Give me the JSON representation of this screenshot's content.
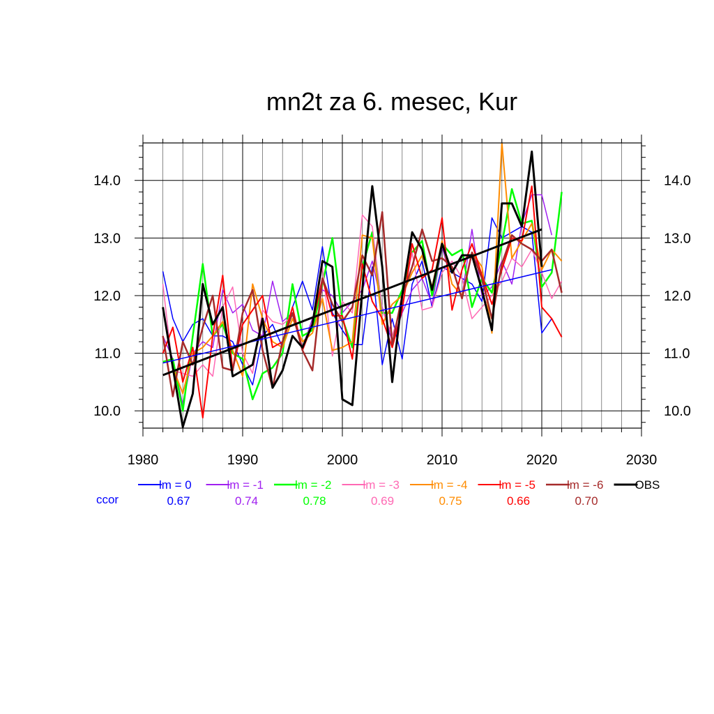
{
  "chart_data": {
    "type": "line",
    "title": "mn2t za 6. mesec, Kur",
    "xlim": [
      1980,
      2030
    ],
    "ylim": [
      9.7,
      14.65
    ],
    "x_ticks": [
      1980,
      1990,
      2000,
      2010,
      2020,
      2030
    ],
    "y_ticks": [
      10.0,
      11.0,
      12.0,
      13.0,
      14.0
    ],
    "grid": true,
    "ccor_label": "ccor",
    "ccor_color": "#0000ff",
    "series": [
      {
        "name": "lm = 0",
        "color": "#0000ff",
        "width": 1.5,
        "ccor": "0.67",
        "x_start": 1982,
        "values": [
          12.42,
          11.6,
          11.2,
          11.5,
          11.6,
          11.3,
          11.3,
          11.2,
          10.8,
          10.45,
          11.3,
          11.5,
          11.1,
          11.8,
          12.25,
          11.75,
          12.85,
          11.7,
          11.4,
          11.15,
          11.15,
          12.5,
          10.8,
          11.6,
          10.9,
          12.2,
          12.6,
          11.8,
          12.5,
          12.4,
          12.3,
          12.2,
          11.9,
          13.35,
          13.0,
          13.1,
          13.2,
          13.1,
          11.35,
          11.6
        ]
      },
      {
        "name": "lm = -1",
        "color": "#a020f0",
        "width": 1.5,
        "ccor": "0.74",
        "x_start": 1982,
        "values": [
          11.3,
          10.9,
          10.1,
          11.0,
          11.2,
          11.1,
          12.1,
          11.7,
          11.85,
          11.4,
          11.3,
          12.25,
          11.55,
          11.7,
          11.1,
          11.6,
          12.1,
          12.0,
          11.7,
          11.9,
          12.1,
          12.6,
          11.8,
          11.2,
          11.7,
          12.1,
          12.3,
          11.85,
          12.85,
          12.2,
          12.0,
          13.15,
          12.0,
          12.15,
          12.6,
          12.2,
          13.25,
          13.75,
          13.75,
          13.05
        ]
      },
      {
        "name": "lm = -2",
        "color": "#00ff00",
        "width": 2.5,
        "ccor": "0.78",
        "x_start": 1982,
        "values": [
          10.85,
          10.9,
          10.0,
          11.3,
          12.55,
          11.3,
          11.5,
          11.0,
          10.9,
          10.2,
          10.65,
          10.75,
          11.0,
          12.2,
          11.3,
          11.4,
          12.2,
          13.0,
          11.6,
          11.1,
          12.5,
          13.1,
          11.7,
          11.7,
          12.1,
          12.75,
          12.95,
          12.0,
          12.9,
          12.7,
          12.8,
          11.8,
          12.3,
          12.05,
          12.9,
          13.85,
          13.25,
          13.3,
          12.15,
          12.4,
          13.8
        ]
      },
      {
        "name": "lm = -3",
        "color": "#ff69b4",
        "width": 1.5,
        "ccor": "0.69",
        "x_start": 1982,
        "values": [
          12.2,
          10.7,
          10.65,
          10.6,
          10.8,
          10.6,
          11.8,
          12.15,
          11.0,
          10.65,
          11.75,
          11.55,
          11.5,
          11.65,
          11.1,
          11.55,
          12.5,
          10.95,
          11.9,
          11.7,
          13.4,
          13.2,
          11.75,
          11.3,
          11.85,
          12.75,
          11.75,
          11.8,
          12.4,
          12.6,
          12.3,
          11.6,
          11.8,
          12.0,
          12.25,
          12.65,
          12.5,
          12.8,
          12.4,
          11.95,
          12.25
        ]
      },
      {
        "name": "lm = -4",
        "color": "#ff8c00",
        "width": 2,
        "ccor": "0.75",
        "x_start": 1982,
        "values": [
          11.8,
          10.75,
          10.3,
          11.0,
          11.1,
          11.3,
          11.55,
          11.05,
          10.6,
          12.2,
          11.6,
          11.2,
          11.1,
          11.6,
          11.2,
          11.35,
          11.95,
          11.05,
          11.1,
          11.2,
          13.05,
          13.0,
          11.5,
          11.85,
          12.0,
          12.4,
          12.7,
          12.15,
          12.95,
          12.2,
          12.0,
          12.75,
          12.5,
          11.35,
          14.65,
          12.65,
          12.95,
          13.25,
          12.45,
          12.8,
          12.6
        ]
      },
      {
        "name": "lm = -5",
        "color": "#ff0000",
        "width": 2,
        "ccor": "0.66",
        "x_start": 1982,
        "values": [
          11.0,
          11.45,
          10.5,
          11.1,
          9.88,
          11.3,
          12.35,
          10.7,
          11.5,
          11.75,
          12.0,
          11.1,
          11.2,
          11.8,
          11.05,
          11.5,
          12.3,
          11.65,
          11.65,
          10.9,
          12.55,
          11.9,
          11.6,
          11.1,
          11.75,
          12.9,
          12.3,
          12.45,
          13.35,
          11.75,
          12.45,
          12.9,
          12.35,
          11.85,
          12.45,
          13.0,
          12.95,
          13.9,
          11.8,
          11.6,
          11.28
        ]
      },
      {
        "name": "lm = -6",
        "color": "#a52a2a",
        "width": 2.5,
        "ccor": "0.70",
        "x_start": 1982,
        "values": [
          11.3,
          10.25,
          11.2,
          10.8,
          11.45,
          12.0,
          10.75,
          10.7,
          11.7,
          12.1,
          11.05,
          10.4,
          11.2,
          11.7,
          11.05,
          10.7,
          12.3,
          11.85,
          11.55,
          11.8,
          12.7,
          12.35,
          13.45,
          11.15,
          12.0,
          12.5,
          13.15,
          12.6,
          12.65,
          12.5,
          11.95,
          12.75,
          12.3,
          11.6,
          12.55,
          13.05,
          12.9,
          12.8,
          12.6,
          12.8,
          12.05
        ]
      },
      {
        "name": "OBS",
        "color": "#000000",
        "width": 3,
        "ccor": "",
        "x_start": 1982,
        "values": [
          11.8,
          10.75,
          9.72,
          10.3,
          12.2,
          11.5,
          11.8,
          10.6,
          10.7,
          10.8,
          11.6,
          10.4,
          10.7,
          11.3,
          11.1,
          11.5,
          12.6,
          12.5,
          10.2,
          10.1,
          12.1,
          13.9,
          12.5,
          10.5,
          12.0,
          13.1,
          12.8,
          12.1,
          12.9,
          12.4,
          12.7,
          12.7,
          12.1,
          11.4,
          13.6,
          13.6,
          13.2,
          14.5,
          12.5
        ]
      }
    ],
    "trend_lines": [
      {
        "series": "lm = 0",
        "color": "#0000ff",
        "width": 1.5,
        "x": [
          1982,
          2021
        ],
        "y": [
          10.83,
          12.45
        ]
      },
      {
        "series": "OBS",
        "color": "#000000",
        "width": 3,
        "x": [
          1982,
          2020
        ],
        "y": [
          10.62,
          13.15
        ]
      }
    ]
  }
}
